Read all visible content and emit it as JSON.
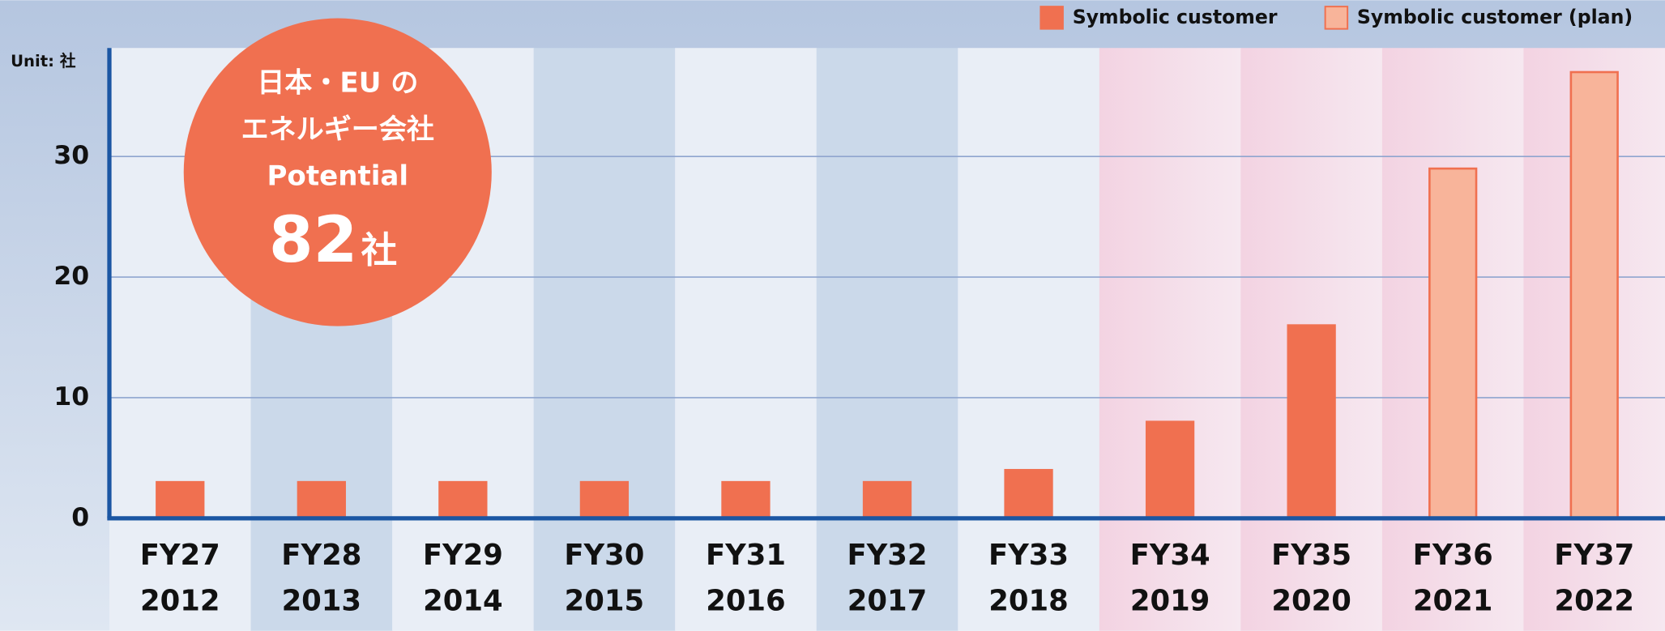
{
  "chart_data": {
    "type": "bar",
    "unit_label": "Unit: 社",
    "categories": [
      [
        "FY27",
        "2012"
      ],
      [
        "FY28",
        "2013"
      ],
      [
        "FY29",
        "2014"
      ],
      [
        "FY30",
        "2015"
      ],
      [
        "FY31",
        "2016"
      ],
      [
        "FY32",
        "2017"
      ],
      [
        "FY33",
        "2018"
      ],
      [
        "FY34",
        "2019"
      ],
      [
        "FY35",
        "2020"
      ],
      [
        "FY36",
        "2021"
      ],
      [
        "FY37",
        "2022"
      ]
    ],
    "series": [
      {
        "name": "Symbolic customer",
        "color": "#f07050",
        "values": [
          3,
          3,
          3,
          3,
          3,
          3,
          4,
          8,
          16,
          null,
          null
        ]
      },
      {
        "name": "Symbolic customer (plan)",
        "color": "#f8b49a",
        "values": [
          null,
          null,
          null,
          null,
          null,
          null,
          null,
          null,
          null,
          29,
          37
        ]
      }
    ],
    "ylim": [
      0,
      39
    ],
    "yticks": [
      0,
      10,
      20,
      30
    ],
    "grid": true,
    "legend": "top-right",
    "annotation": {
      "lines": [
        "日本・EU の",
        "エネルギー会社",
        "Potential"
      ],
      "value": "82",
      "unit": "社"
    }
  }
}
